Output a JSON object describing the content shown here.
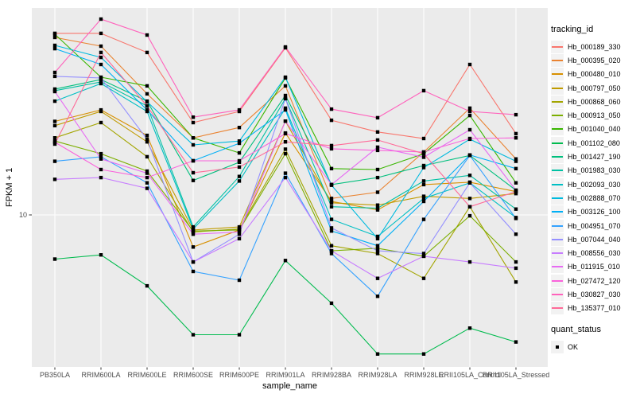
{
  "chart_data": {
    "type": "line",
    "title": "",
    "xlabel": "sample_name",
    "ylabel": "FPKM + 1",
    "y_scale": "log10",
    "ylim": [
      1.74,
      110
    ],
    "y_ticks": [
      10
    ],
    "y_tick_labels": [
      "10"
    ],
    "grid": "major",
    "panel_bg": "#EBEBEB",
    "gridline_color": "#FFFFFF",
    "tick_label_color": "#4D4D4D",
    "point_color": "#000000",
    "point_shape": "square",
    "legend_position": "right",
    "legend_title": "tracking_id",
    "legend2_title": "quant_status",
    "legend2_items": [
      "OK"
    ],
    "categories": [
      "PB350LA",
      "RRIM600LA",
      "RRIM600LE",
      "RRIM600SE",
      "RRIM600PE",
      "RRIM901LA",
      "RRIM928BA",
      "RRIM928LA",
      "RRIM928LE",
      "RRII105LA_Control",
      "RRII105LA_Stressed"
    ],
    "series": [
      {
        "name": "Hb_000189_330",
        "color": "#F8766D",
        "values": [
          81.7,
          81.7,
          65.5,
          29.1,
          33.1,
          69.2,
          29.9,
          26.1,
          24.2,
          57.0,
          25.6
        ]
      },
      {
        "name": "Hb_000395_020",
        "color": "#EA8331",
        "values": [
          78.0,
          70.5,
          40.6,
          24.4,
          27.5,
          44.5,
          12.1,
          13.0,
          20.7,
          34.4,
          19.1
        ]
      },
      {
        "name": "Hb_000480_010",
        "color": "#D89000",
        "values": [
          29.5,
          33.7,
          25.1,
          6.9,
          8.4,
          25.8,
          11.7,
          10.6,
          14.2,
          14.6,
          13.1
        ]
      },
      {
        "name": "Hb_000797_050",
        "color": "#C09B00",
        "values": [
          28.1,
          33.1,
          23.3,
          8.4,
          8.7,
          29.6,
          11.5,
          11.2,
          12.4,
          12.1,
          12.8
        ]
      },
      {
        "name": "Hb_000868_060",
        "color": "#A3A500",
        "values": [
          24.4,
          29.1,
          19.6,
          8.2,
          8.5,
          21.4,
          7.0,
          6.4,
          4.8,
          11.0,
          4.6
        ]
      },
      {
        "name": "Hb_000913_050",
        "color": "#7CAE00",
        "values": [
          23.5,
          20.3,
          16.6,
          8.3,
          8.4,
          20.3,
          6.6,
          6.8,
          6.2,
          9.9,
          5.8
        ]
      },
      {
        "name": "Hb_001040_040",
        "color": "#39B600",
        "values": [
          80.9,
          49.2,
          44.5,
          24.4,
          20.5,
          48.8,
          17.1,
          16.9,
          20.3,
          31.6,
          14.5
        ]
      },
      {
        "name": "Hb_001102_080",
        "color": "#00BB4E",
        "values": [
          6.0,
          6.3,
          4.4,
          2.5,
          2.5,
          5.9,
          3.6,
          2.0,
          2.0,
          2.7,
          2.3
        ]
      },
      {
        "name": "Hb_001427_190",
        "color": "#00BF7D",
        "values": [
          42.9,
          47.9,
          37.3,
          14.9,
          18.4,
          39.8,
          14.2,
          15.4,
          17.7,
          19.9,
          13.3
        ]
      },
      {
        "name": "Hb_001983_030",
        "color": "#00C1A3",
        "values": [
          42.1,
          46.6,
          35.3,
          8.7,
          15.6,
          38.4,
          11.0,
          10.8,
          14.8,
          15.8,
          10.7
        ]
      },
      {
        "name": "Hb_002093_030",
        "color": "#00BFC4",
        "values": [
          37.3,
          45.7,
          33.1,
          8.5,
          14.8,
          34.4,
          9.5,
          7.8,
          12.1,
          14.5,
          9.7
        ]
      },
      {
        "name": "Hb_002888_070",
        "color": "#00BADE",
        "values": [
          71.1,
          61.9,
          37.0,
          22.5,
          23.5,
          49.2,
          14.1,
          7.6,
          17.3,
          24.0,
          18.6
        ]
      },
      {
        "name": "Hb_003126_100",
        "color": "#00B0F6",
        "values": [
          68.5,
          57.0,
          33.7,
          18.7,
          22.9,
          33.7,
          8.3,
          7.0,
          11.7,
          20.0,
          17.1
        ]
      },
      {
        "name": "Hb_004951_070",
        "color": "#35A2FF",
        "values": [
          18.6,
          19.6,
          14.5,
          5.2,
          4.7,
          16.2,
          6.4,
          3.9,
          9.5,
          19.9,
          9.6
        ]
      },
      {
        "name": "Hb_007044_040",
        "color": "#9590FF",
        "values": [
          49.7,
          48.8,
          24.0,
          5.8,
          8.0,
          38.4,
          8.6,
          6.6,
          6.4,
          14.5,
          8.0
        ]
      },
      {
        "name": "Hb_008556_030",
        "color": "#C77CFF",
        "values": [
          15.1,
          15.4,
          13.6,
          5.8,
          7.6,
          15.4,
          6.6,
          4.8,
          6.2,
          5.8,
          5.4
        ]
      },
      {
        "name": "Hb_011915_010",
        "color": "#E76BF3",
        "values": [
          41.7,
          19.1,
          16.2,
          8.0,
          8.2,
          29.6,
          14.2,
          21.9,
          19.5,
          26.8,
          13.3
        ]
      },
      {
        "name": "Hb_027472_120",
        "color": "#FA62DB",
        "values": [
          23.2,
          16.9,
          15.4,
          18.7,
          18.7,
          25.6,
          21.5,
          21.1,
          20.7,
          24.2,
          24.4
        ]
      },
      {
        "name": "Hb_030827_030",
        "color": "#FF62BC",
        "values": [
          52.0,
          96.4,
          80.2,
          31.0,
          33.7,
          69.8,
          34.0,
          30.8,
          42.1,
          33.1,
          31.9
        ]
      },
      {
        "name": "Hb_135377_010",
        "color": "#FF6A98",
        "values": [
          22.7,
          65.5,
          35.3,
          16.3,
          17.4,
          23.3,
          22.3,
          23.8,
          20.3,
          11.0,
          13.1
        ]
      }
    ]
  }
}
